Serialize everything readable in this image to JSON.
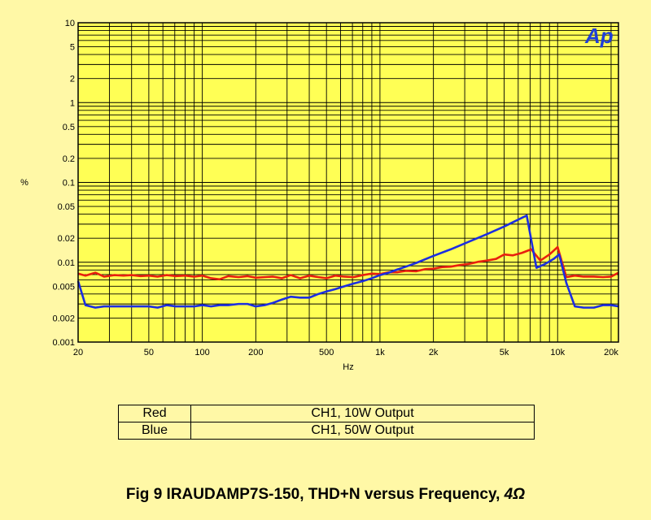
{
  "logo": "Ap",
  "caption": {
    "main": "Fig 9  IRAUDAMP7S-150, THD+N versus Frequency, ",
    "load": "4Ω"
  },
  "legend": [
    {
      "key": "Red",
      "desc": "CH1, 10W Output",
      "color": "#e8200e"
    },
    {
      "key": "Blue",
      "desc": "CH1, 50W Output",
      "color": "#1c2ee0"
    }
  ],
  "chart_data": {
    "type": "line",
    "xlabel": "Hz",
    "ylabel": "%",
    "xscale": "log",
    "yscale": "log",
    "xlim": [
      20,
      22000
    ],
    "ylim": [
      0.001,
      10
    ],
    "grid": true,
    "x_tick_labels": [
      "20",
      "50",
      "100",
      "200",
      "500",
      "1k",
      "2k",
      "5k",
      "10k",
      "20k"
    ],
    "y_tick_labels": [
      "10",
      "5",
      "2",
      "1",
      "0.5",
      "0.2",
      "0.1",
      "0.05",
      "0.02",
      "0.01",
      "0.005",
      "0.002",
      "0.001"
    ],
    "series": [
      {
        "name": "Red",
        "color": "#e8200e",
        "x": [
          20,
          22,
          25,
          28,
          32,
          36,
          40,
          45,
          50,
          56,
          63,
          71,
          80,
          90,
          100,
          112,
          125,
          140,
          160,
          180,
          200,
          224,
          250,
          280,
          315,
          355,
          400,
          450,
          500,
          560,
          630,
          710,
          800,
          900,
          1000,
          1120,
          1250,
          1400,
          1600,
          1800,
          2000,
          2240,
          2500,
          2800,
          3150,
          3550,
          4000,
          4500,
          5000,
          5600,
          6300,
          7100,
          8000,
          9000,
          10000,
          11200,
          12500,
          14000,
          16000,
          18000,
          20000,
          22000
        ],
        "y": [
          0.0072,
          0.0068,
          0.0074,
          0.0066,
          0.0069,
          0.0068,
          0.0069,
          0.0067,
          0.0068,
          0.0066,
          0.0069,
          0.0067,
          0.0068,
          0.0066,
          0.0068,
          0.0063,
          0.0061,
          0.0067,
          0.0065,
          0.0067,
          0.0064,
          0.0065,
          0.0066,
          0.0063,
          0.0069,
          0.0063,
          0.0068,
          0.0065,
          0.0063,
          0.0068,
          0.0066,
          0.0065,
          0.0069,
          0.0072,
          0.0071,
          0.0075,
          0.0075,
          0.0078,
          0.0077,
          0.0082,
          0.0083,
          0.0087,
          0.0088,
          0.0092,
          0.0095,
          0.0101,
          0.0105,
          0.011,
          0.0125,
          0.0122,
          0.0131,
          0.0145,
          0.0105,
          0.0125,
          0.0155,
          0.0065,
          0.0068,
          0.0066,
          0.0066,
          0.0065,
          0.0066,
          0.0074
        ]
      },
      {
        "name": "Blue",
        "color": "#1c2ee0",
        "x": [
          20,
          22,
          25,
          28,
          32,
          36,
          40,
          45,
          50,
          56,
          63,
          71,
          80,
          90,
          100,
          112,
          125,
          140,
          160,
          180,
          200,
          224,
          250,
          280,
          315,
          355,
          400,
          450,
          500,
          560,
          630,
          710,
          800,
          900,
          1000,
          1120,
          1250,
          1400,
          1600,
          2000,
          2500,
          3150,
          4000,
          5000,
          6300,
          6700,
          7600,
          8500,
          9500,
          10200,
          11200,
          12500,
          14000,
          16000,
          18000,
          20000,
          22000
        ],
        "y": [
          0.0058,
          0.0029,
          0.0027,
          0.0028,
          0.0028,
          0.0028,
          0.0028,
          0.0028,
          0.0028,
          0.0027,
          0.0029,
          0.0028,
          0.0028,
          0.0028,
          0.0029,
          0.0028,
          0.0029,
          0.0029,
          0.003,
          0.003,
          0.0028,
          0.0029,
          0.0031,
          0.0034,
          0.0037,
          0.0036,
          0.0036,
          0.004,
          0.0043,
          0.0046,
          0.005,
          0.0054,
          0.0058,
          0.0063,
          0.0069,
          0.0074,
          0.0081,
          0.0088,
          0.0098,
          0.012,
          0.0145,
          0.018,
          0.0225,
          0.028,
          0.036,
          0.0385,
          0.0085,
          0.0095,
          0.011,
          0.0125,
          0.0055,
          0.0028,
          0.0027,
          0.0027,
          0.0029,
          0.0029,
          0.0028
        ]
      }
    ]
  }
}
